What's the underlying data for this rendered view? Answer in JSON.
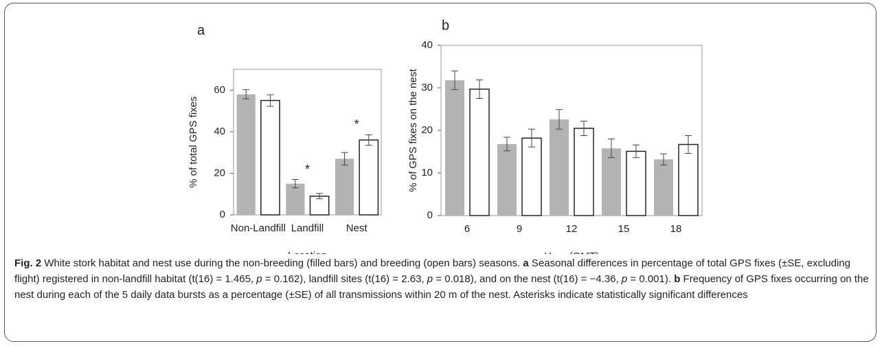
{
  "chart_data": [
    {
      "type": "bar",
      "panel": "a",
      "ylabel": "% of total GPS fixes",
      "xlabel": "Location",
      "categories": [
        "Non-Landfill",
        "Landfill",
        "Nest"
      ],
      "series": [
        {
          "color": "#b3b3b3",
          "values": [
            58,
            15,
            27
          ],
          "errors": [
            2.2,
            2.0,
            3.0
          ]
        },
        {
          "color": "#ffffff",
          "values": [
            55,
            9,
            36
          ],
          "errors": [
            2.8,
            1.3,
            2.5
          ]
        }
      ],
      "annotations": [
        {
          "text": "*",
          "category": 1
        },
        {
          "text": "*",
          "category": 2
        }
      ],
      "ylim": [
        0,
        70
      ],
      "yticks": [
        0,
        20,
        40,
        60
      ]
    },
    {
      "type": "bar",
      "panel": "b",
      "ylabel": "% of GPS fixes on the nest",
      "xlabel": "Hour (GMT)",
      "categories": [
        "6",
        "9",
        "12",
        "15",
        "18"
      ],
      "series": [
        {
          "color": "#b3b3b3",
          "values": [
            31.8,
            16.8,
            22.6,
            15.8,
            13.2
          ],
          "errors": [
            2.2,
            1.6,
            2.3,
            2.2,
            1.3
          ]
        },
        {
          "color": "#ffffff",
          "values": [
            29.7,
            18.2,
            20.5,
            15.1,
            16.7
          ],
          "errors": [
            2.2,
            2.1,
            1.7,
            1.5,
            2.1
          ]
        }
      ],
      "ylim": [
        0,
        40
      ],
      "yticks": [
        0,
        10,
        20,
        30,
        40
      ]
    }
  ],
  "caption": [
    {
      "text": "Fig. 2",
      "style": "bold"
    },
    {
      "text": " White stork habitat and nest use during the non-breeding (filled bars) and breeding (open bars) seasons. "
    },
    {
      "text": "a",
      "style": "bold"
    },
    {
      "text": " Seasonal differences in percentage of total GPS fixes (±SE, excluding flight) registered in non-landfill habitat (t(16) = 1.465, "
    },
    {
      "text": "p",
      "style": "italic"
    },
    {
      "text": " = 0.162), landfill sites (t(16) = 2.63, "
    },
    {
      "text": "p",
      "style": "italic"
    },
    {
      "text": " = 0.018), and on the nest (t(16) = −4.36, "
    },
    {
      "text": "p",
      "style": "italic"
    },
    {
      "text": " = 0.001). "
    },
    {
      "text": "b",
      "style": "bold"
    },
    {
      "text": " Frequency of GPS fixes occurring on the nest during each of the 5 daily data bursts as a percentage (±SE) of all transmissions within 20 m of the nest. Asterisks indicate statistically significant differences"
    }
  ]
}
